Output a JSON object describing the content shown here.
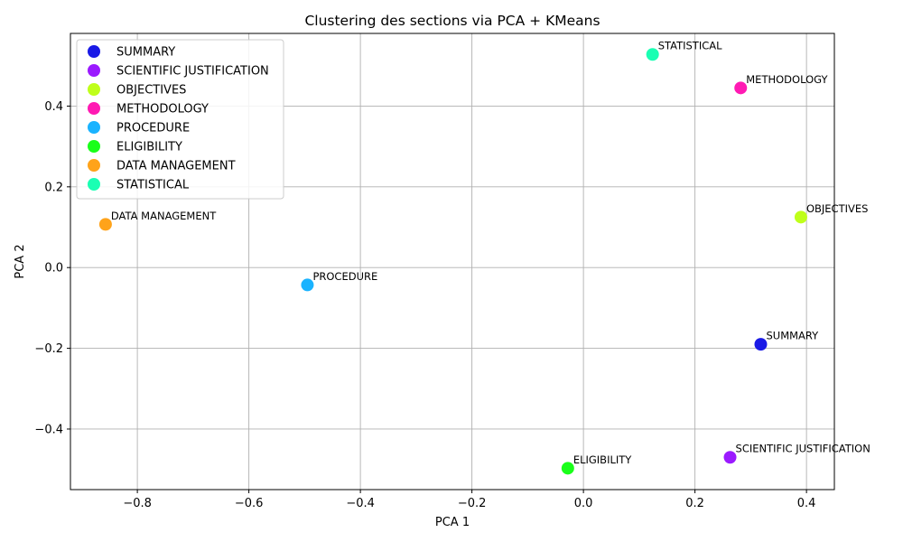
{
  "chart_data": {
    "type": "scatter",
    "title": "Clustering des sections via PCA + KMeans",
    "xlabel": "PCA 1",
    "ylabel": "PCA 2",
    "xlim": [
      -0.92,
      0.45
    ],
    "ylim": [
      -0.55,
      0.58
    ],
    "xticks": [
      -0.8,
      -0.6,
      -0.4,
      -0.2,
      0.0,
      0.2,
      0.4
    ],
    "yticks": [
      -0.4,
      -0.2,
      0.0,
      0.2,
      0.4
    ],
    "xtick_labels": [
      "−0.8",
      "−0.6",
      "−0.4",
      "−0.2",
      "0.0",
      "0.2",
      "0.4"
    ],
    "ytick_labels": [
      "−0.4",
      "−0.2",
      "0.0",
      "0.2",
      "0.4"
    ],
    "grid": true,
    "legend_position": "upper-left",
    "series": [
      {
        "name": "SUMMARY",
        "x": 0.318,
        "y": -0.19,
        "color": "#1a1ae6"
      },
      {
        "name": "SCIENTIFIC JUSTIFICATION",
        "x": 0.263,
        "y": -0.47,
        "color": "#9b1aff"
      },
      {
        "name": "OBJECTIVES",
        "x": 0.39,
        "y": 0.125,
        "color": "#bfff1a"
      },
      {
        "name": "METHODOLOGY",
        "x": 0.282,
        "y": 0.445,
        "color": "#ff1ab3"
      },
      {
        "name": "PROCEDURE",
        "x": -0.495,
        "y": -0.043,
        "color": "#1ab3ff"
      },
      {
        "name": "ELIGIBILITY",
        "x": -0.028,
        "y": -0.497,
        "color": "#1aff1a"
      },
      {
        "name": "DATA MANAGEMENT",
        "x": -0.857,
        "y": 0.107,
        "color": "#ffa31a"
      },
      {
        "name": "STATISTICAL",
        "x": 0.124,
        "y": 0.528,
        "color": "#1affb3"
      }
    ]
  }
}
